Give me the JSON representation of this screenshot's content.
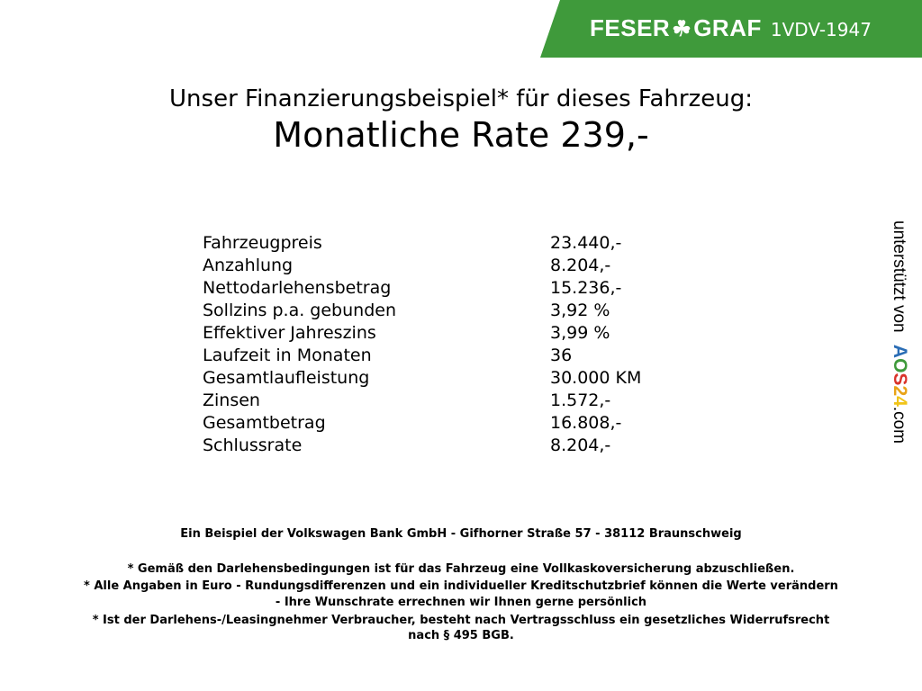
{
  "header": {
    "brand_left": "FESER",
    "brand_right": "GRAF",
    "dealer_code": "1VDV-1947",
    "brand_color": "#3f9a3b",
    "icon": "clover-icon"
  },
  "title": "Unser Finanzierungsbeispiel* für dieses Fahrzeug:",
  "rate": "Monatliche Rate 239,-",
  "rows": [
    {
      "label": "Fahrzeugpreis",
      "value": "23.440,-"
    },
    {
      "label": "Anzahlung",
      "value": "8.204,-"
    },
    {
      "label": "Nettodarlehensbetrag",
      "value": "15.236,-"
    },
    {
      "label": "Sollzins p.a. gebunden",
      "value": "3,92 %"
    },
    {
      "label": "Effektiver Jahreszins",
      "value": "3,99 %"
    },
    {
      "label": "Laufzeit in Monaten",
      "value": "36"
    },
    {
      "label": "Gesamtlaufleistung",
      "value": "30.000 KM"
    },
    {
      "label": "Zinsen",
      "value": "1.572,-"
    },
    {
      "label": "Gesamtbetrag",
      "value": "16.808,-"
    },
    {
      "label": "Schlussrate",
      "value": "8.204,-"
    }
  ],
  "footer": {
    "bank": "Ein Beispiel der Volkswagen Bank GmbH - Gifhorner Straße 57 - 38112 Braunschweig",
    "notes": [
      "* Gemäß den Darlehensbedingungen ist für das Fahrzeug eine Vollkaskoversicherung abzuschließen.",
      "* Alle Angaben in Euro - Rundungsdifferenzen und ein individueller Kreditschutzbrief können die Werte verändern",
      "- Ihre Wunschrate errechnen wir Ihnen gerne persönlich",
      "* Ist der Darlehens-/Leasingnehmer Verbraucher, besteht nach Vertragsschluss ein gesetzliches Widerrufsrecht",
      "nach § 495 BGB."
    ]
  },
  "side": {
    "text": "unterstützt von",
    "logo": "AOS24",
    "suffix": ".com",
    "logo_colors": [
      "#2a6db5",
      "#3f9a3b",
      "#d9342b",
      "#e8a317",
      "#f0c419"
    ]
  }
}
